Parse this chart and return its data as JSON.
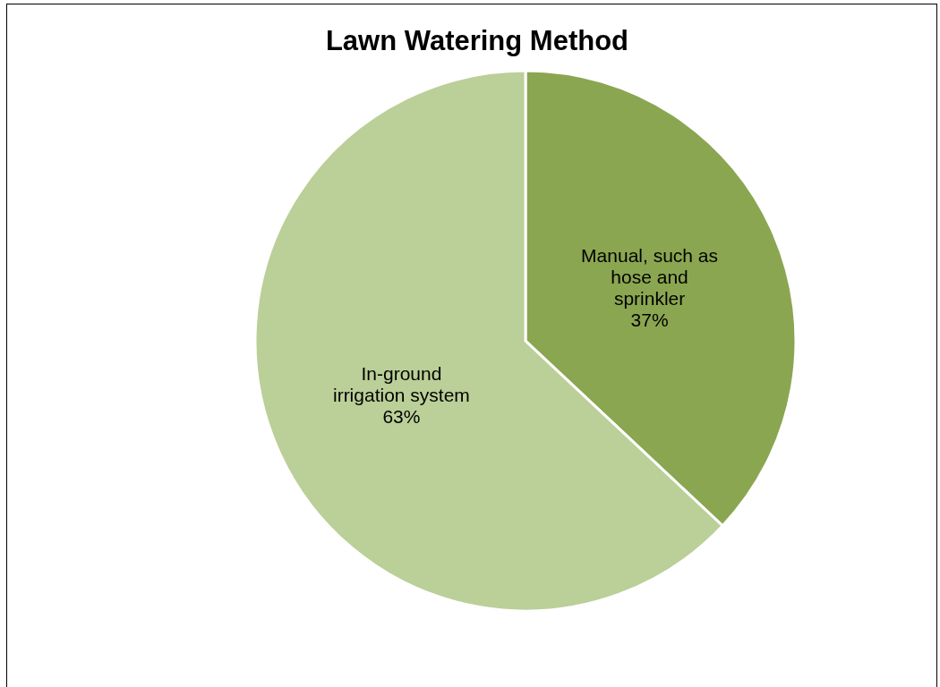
{
  "chart_data": {
    "type": "pie",
    "title": "Lawn Watering Method",
    "categories": [
      "Manual, such as hose and sprinkler",
      "In-ground irrigation system"
    ],
    "values": [
      37,
      63
    ],
    "colors": [
      "#8ba650",
      "#bbcf98"
    ],
    "value_labels": [
      "37%",
      "63%"
    ]
  }
}
